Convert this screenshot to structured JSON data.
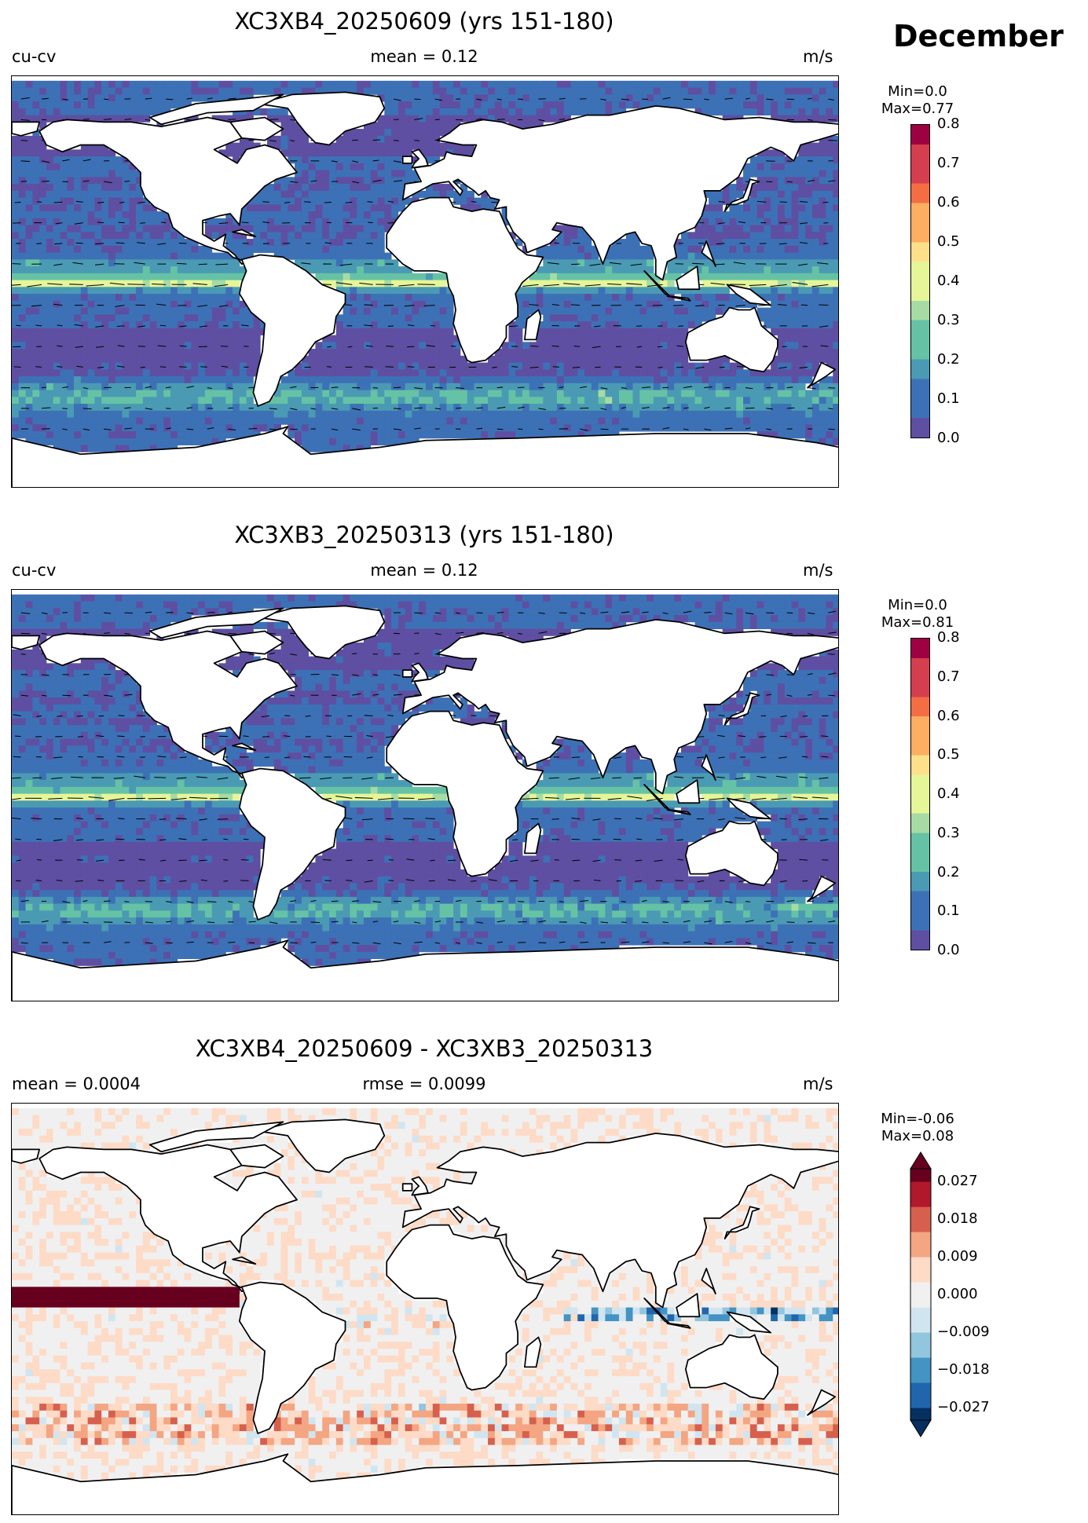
{
  "month": "December",
  "panels": [
    {
      "title": "XC3XB4_20250609 (yrs 151-180)",
      "left_label": "cu-cv",
      "center_label": "mean = 0.12",
      "units": "m/s",
      "colorbar": {
        "min_text": "Min=0.0",
        "max_text": "Max=0.77",
        "ticks": [
          "0.0",
          "0.1",
          "0.2",
          "0.3",
          "0.4",
          "0.5",
          "0.6",
          "0.7",
          "0.8"
        ],
        "range": [
          0.0,
          0.8
        ],
        "colormap": "Spectral_r"
      }
    },
    {
      "title": "XC3XB3_20250313 (yrs 151-180)",
      "left_label": "cu-cv",
      "center_label": "mean = 0.12",
      "units": "m/s",
      "colorbar": {
        "min_text": "Min=0.0",
        "max_text": "Max=0.81",
        "ticks": [
          "0.0",
          "0.1",
          "0.2",
          "0.3",
          "0.4",
          "0.5",
          "0.6",
          "0.7",
          "0.8"
        ],
        "range": [
          0.0,
          0.8
        ],
        "colormap": "Spectral_r"
      }
    },
    {
      "title": "XC3XB4_20250609 - XC3XB3_20250313",
      "left_label": "mean = 0.0004",
      "center_label": "rmse = 0.0099",
      "units": "m/s",
      "colorbar": {
        "min_text": "Min=-0.06",
        "max_text": "Max=0.08",
        "ticks": [
          "0.027",
          "0.018",
          "0.009",
          "0.000",
          "−0.009",
          "−0.018",
          "−0.027"
        ],
        "range": [
          -0.03,
          0.03
        ],
        "extend": "both",
        "colormap": "RdBu_r"
      }
    }
  ],
  "colors": {
    "spectral": [
      "#5e4fa2",
      "#3d71b6",
      "#4a9ab4",
      "#66c2a5",
      "#a6dba4",
      "#e6f598",
      "#fee08b",
      "#fdae61",
      "#f46d43",
      "#d53e4f",
      "#9e0142"
    ],
    "rdbu": [
      "#053061",
      "#2166ac",
      "#4393c3",
      "#92c5de",
      "#d1e5f0",
      "#f0f0f0",
      "#fddbc7",
      "#f4a582",
      "#d6604d",
      "#b2182b",
      "#67001f"
    ],
    "land": "#ffffff",
    "coast": "#000000"
  }
}
